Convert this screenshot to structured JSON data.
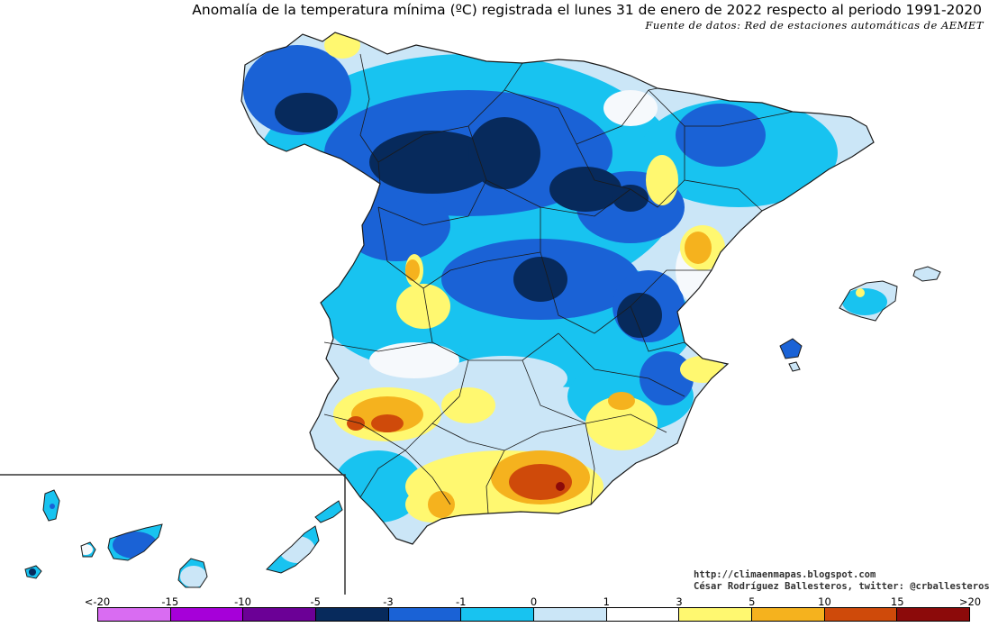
{
  "title": "Anomalía de la temperatura mínima (ºC) registrada el lunes 31 de enero de 2022 respecto al periodo 1991-2020",
  "subtitle": "Fuente de datos: Red de estaciones automáticas de AEMET",
  "credits": {
    "url": "http://climaenmapas.blogspot.com",
    "author": "César Rodríguez Ballesteros, twitter: @crballesteros"
  },
  "legend": {
    "tick_labels": [
      "<-20",
      "-15",
      "-10",
      "-5",
      "-3",
      "-1",
      "0",
      "1",
      "3",
      "5",
      "10",
      "15",
      ">20"
    ],
    "colors": [
      "#d96cf2",
      "#a600d9",
      "#6b0096",
      "#072a5c",
      "#1a62d6",
      "#18c3f0",
      "#cbe6f7",
      "#ffffff",
      "#fff870",
      "#f5b21e",
      "#cf4a0a",
      "#8c0a0a",
      "#6b3a0a"
    ]
  },
  "map_palette": {
    "sea": "#ffffff",
    "borders": "#1a1a1a",
    "navy": "#072a5c",
    "blue": "#1a62d6",
    "cyan": "#18c3f0",
    "lightblue": "#cbe6f7",
    "white": "#f6f9fc",
    "yellow": "#fff870",
    "orange": "#f5b21e",
    "red": "#cf4a0a",
    "darkred": "#8c0a0a"
  }
}
